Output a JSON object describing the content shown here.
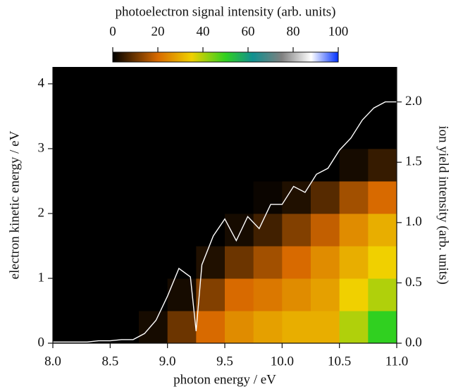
{
  "chart_data": {
    "type": "heatmap",
    "title": "photoelectron signal intensity (arb. units)",
    "x_label": "photon energy / eV",
    "y_label": "electron kinetic energy / eV",
    "y2_label": "ion yield intensity (arb. units)",
    "xlim": [
      8.0,
      11.0
    ],
    "xticks": [
      {
        "value": 8.0,
        "label": "8.0"
      },
      {
        "value": 8.5,
        "label": "8.5"
      },
      {
        "value": 9.0,
        "label": "9.0"
      },
      {
        "value": 9.5,
        "label": "9.5"
      },
      {
        "value": 10.0,
        "label": "10.0"
      },
      {
        "value": 10.5,
        "label": "10.5"
      },
      {
        "value": 11.0,
        "label": "11.0"
      }
    ],
    "ylim": [
      0,
      4.26
    ],
    "yticks": [
      0,
      1,
      2,
      3,
      4
    ],
    "y2lim": [
      0,
      2.29
    ],
    "y2ticks": [
      {
        "value": 0,
        "label": "0.0"
      },
      {
        "value": 0.5,
        "label": "0.5"
      },
      {
        "value": 1.0,
        "label": "1.0"
      },
      {
        "value": 1.5,
        "label": "1.5"
      },
      {
        "value": 2.0,
        "label": "2.0"
      }
    ],
    "clim": [
      0,
      100
    ],
    "cticks": [
      0,
      20,
      40,
      60,
      80,
      100
    ],
    "colorscale": [
      [
        0,
        "#000000"
      ],
      [
        20,
        "#d86a00"
      ],
      [
        35,
        "#f0d000"
      ],
      [
        50,
        "#30d020"
      ],
      [
        62,
        "#109090"
      ],
      [
        75,
        "#808080"
      ],
      [
        88,
        "#ffffff"
      ],
      [
        100,
        "#0030ff"
      ]
    ],
    "background": "#000000",
    "x_bins": [
      8.0,
      8.25,
      8.5,
      8.75,
      9.0,
      9.25,
      9.5,
      9.75,
      10.0,
      10.25,
      10.5,
      10.75,
      11.0
    ],
    "y_bins": [
      0,
      0.5,
      1.0,
      1.5,
      2.0,
      2.5,
      3.0,
      3.5,
      4.26
    ],
    "z": [
      [
        0,
        0,
        0,
        2,
        10,
        20,
        25,
        28,
        30,
        30,
        40,
        50
      ],
      [
        0,
        0,
        0,
        0,
        2,
        12,
        20,
        22,
        25,
        28,
        35,
        40
      ],
      [
        0,
        0,
        0,
        0,
        0,
        3,
        10,
        15,
        20,
        25,
        30,
        35
      ],
      [
        0,
        0,
        0,
        0,
        0,
        0,
        2,
        6,
        12,
        18,
        25,
        30
      ],
      [
        0,
        0,
        0,
        0,
        0,
        0,
        0,
        1,
        3,
        8,
        15,
        20
      ],
      [
        0,
        0,
        0,
        0,
        0,
        0,
        0,
        0,
        0,
        0,
        2,
        5
      ],
      [
        0,
        0,
        0,
        0,
        0,
        0,
        0,
        0,
        0,
        0,
        0,
        0
      ],
      [
        0,
        0,
        0,
        0,
        0,
        0,
        0,
        0,
        0,
        0,
        0,
        0
      ]
    ],
    "series": [
      {
        "axis": "y2",
        "color": "#ffffff",
        "x": [
          8.0,
          8.1,
          8.2,
          8.3,
          8.4,
          8.5,
          8.6,
          8.7,
          8.8,
          8.9,
          9.0,
          9.1,
          9.2,
          9.25,
          9.3,
          9.4,
          9.5,
          9.6,
          9.7,
          9.8,
          9.9,
          10.0,
          10.1,
          10.2,
          10.3,
          10.4,
          10.5,
          10.6,
          10.7,
          10.8,
          10.9,
          11.0
        ],
        "values": [
          0.01,
          0.01,
          0.01,
          0.01,
          0.02,
          0.02,
          0.03,
          0.03,
          0.08,
          0.19,
          0.39,
          0.62,
          0.55,
          0.1,
          0.65,
          0.89,
          1.03,
          0.85,
          1.05,
          0.95,
          1.15,
          1.15,
          1.3,
          1.25,
          1.4,
          1.45,
          1.6,
          1.7,
          1.85,
          1.95,
          2.0,
          2.0
        ]
      }
    ]
  }
}
